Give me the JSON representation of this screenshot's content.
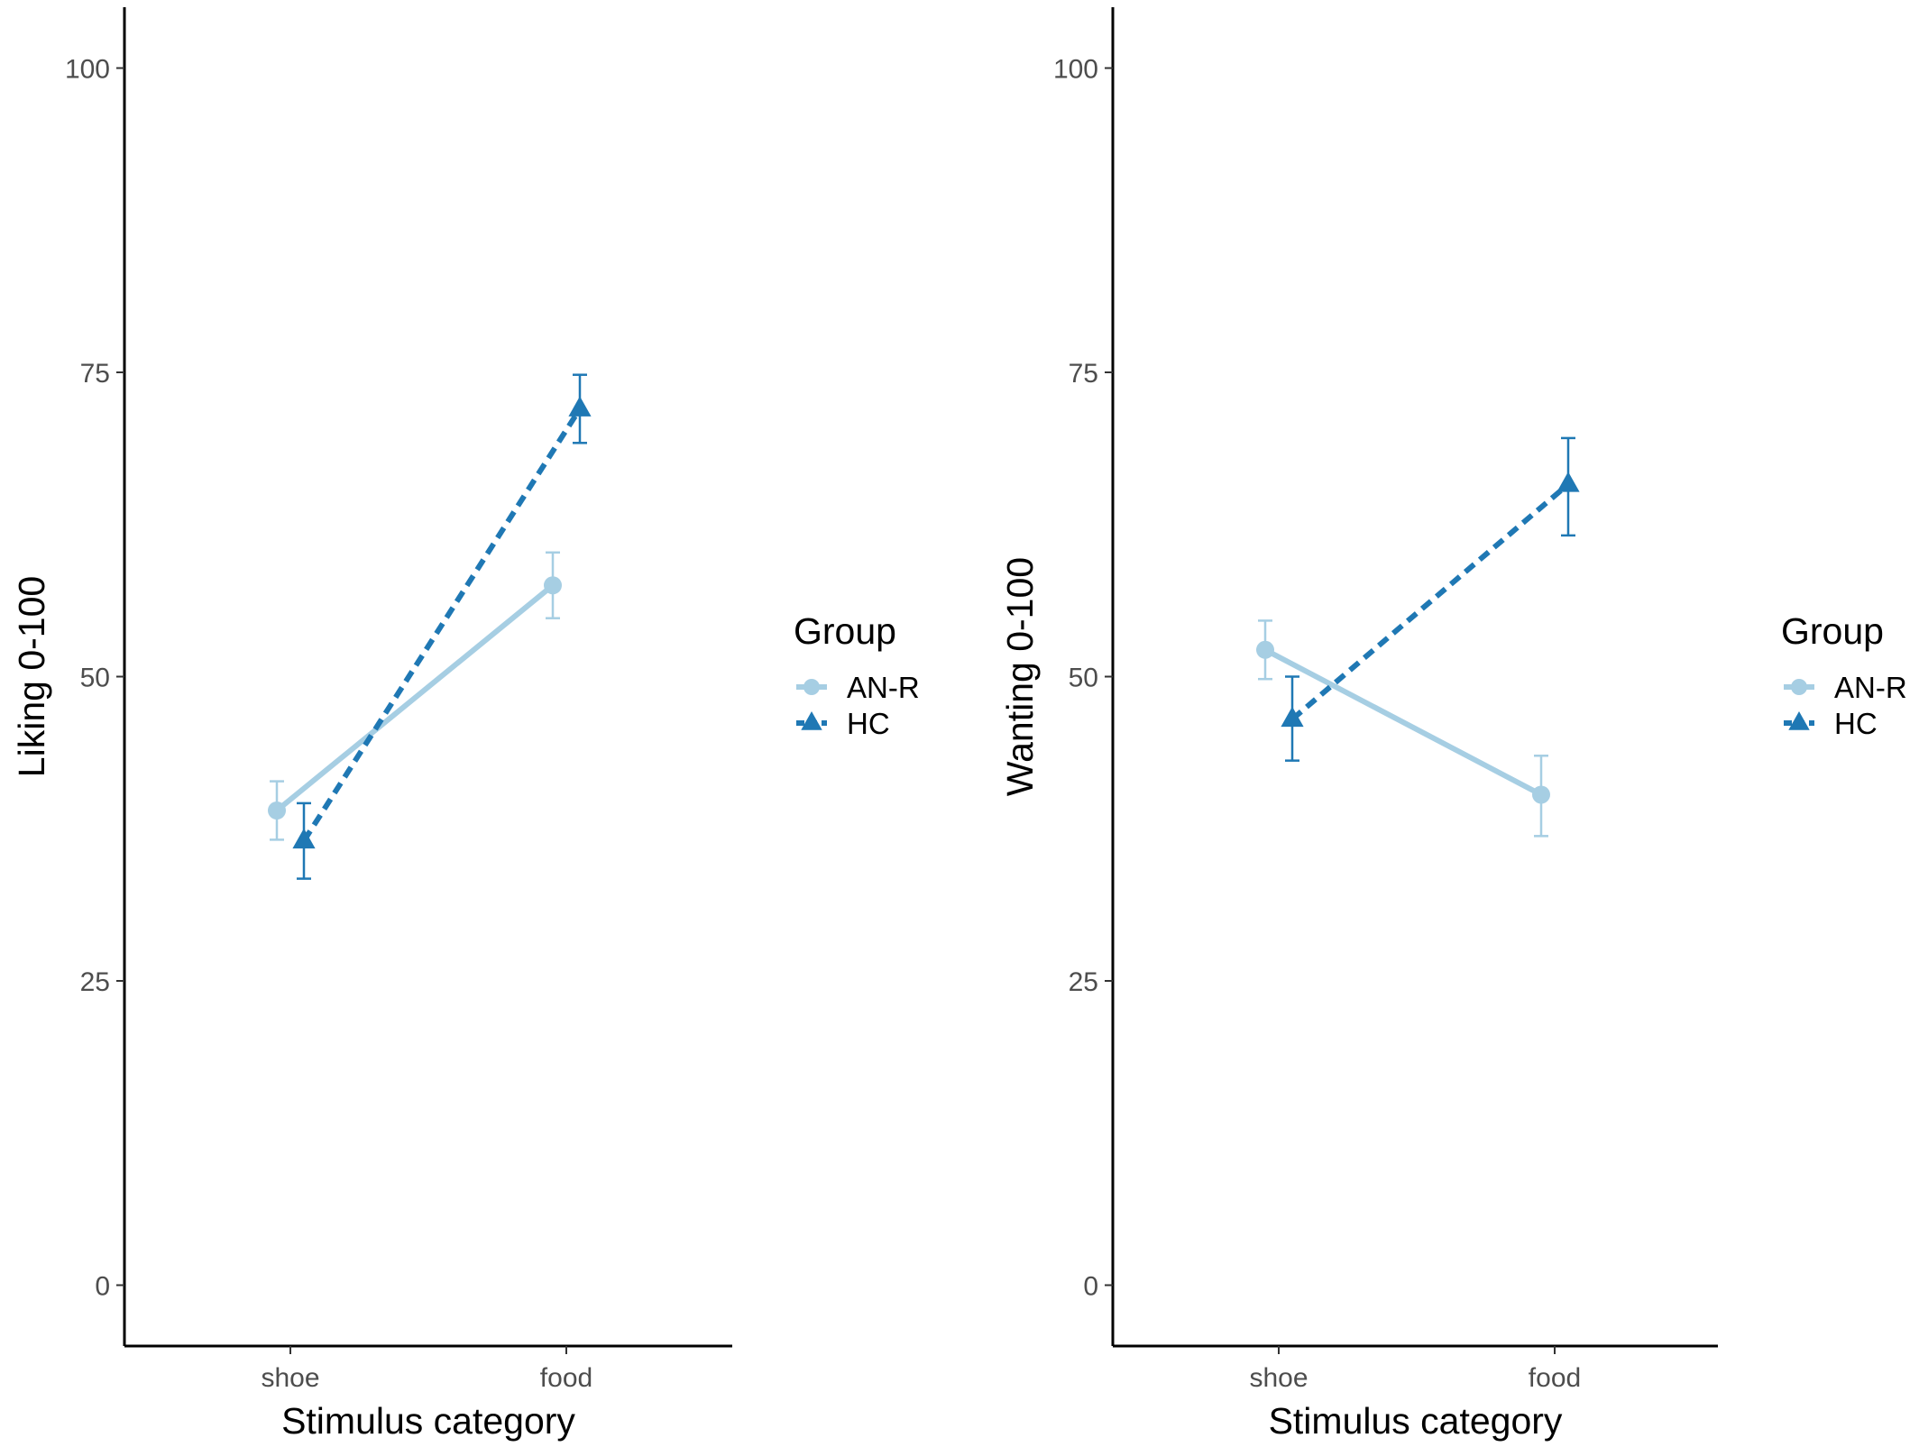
{
  "colors": {
    "AN-R": "#a6cee3",
    "HC": "#1f78b4",
    "axis": "#000000",
    "tick_text": "#4d4d4d"
  },
  "legend": {
    "title": "Group",
    "entries": [
      {
        "label": "AN-R",
        "marker": "circle",
        "line": "solid"
      },
      {
        "label": "HC",
        "marker": "triangle",
        "line": "dashed"
      }
    ]
  },
  "chart_data": [
    {
      "type": "line",
      "title": "",
      "xlabel": "Stimulus category",
      "ylabel": "Liking 0-100",
      "categories": [
        "shoe",
        "food"
      ],
      "ylim": [
        -5,
        105
      ],
      "yticks": [
        "0",
        "25",
        "50",
        "75",
        "100"
      ],
      "grid": false,
      "legend_position": "right",
      "series": [
        {
          "name": "AN-R",
          "values": [
            39,
            57.5
          ],
          "error_low": [
            36.6,
            54.8
          ],
          "error_high": [
            41.4,
            60.2
          ]
        },
        {
          "name": "HC",
          "values": [
            36.5,
            72
          ],
          "error_low": [
            33.4,
            69.2
          ],
          "error_high": [
            39.6,
            74.8
          ]
        }
      ]
    },
    {
      "type": "line",
      "title": "",
      "xlabel": "Stimulus category",
      "ylabel": "Wanting 0-100",
      "categories": [
        "shoe",
        "food"
      ],
      "ylim": [
        -5,
        105
      ],
      "yticks": [
        "0",
        "25",
        "50",
        "75",
        "100"
      ],
      "grid": false,
      "legend_position": "right",
      "series": [
        {
          "name": "AN-R",
          "values": [
            52.2,
            40.3
          ],
          "error_low": [
            49.8,
            36.9
          ],
          "error_high": [
            54.6,
            43.5
          ]
        },
        {
          "name": "HC",
          "values": [
            46.5,
            65.8
          ],
          "error_low": [
            43.1,
            61.6
          ],
          "error_high": [
            50,
            69.6
          ]
        }
      ]
    }
  ]
}
